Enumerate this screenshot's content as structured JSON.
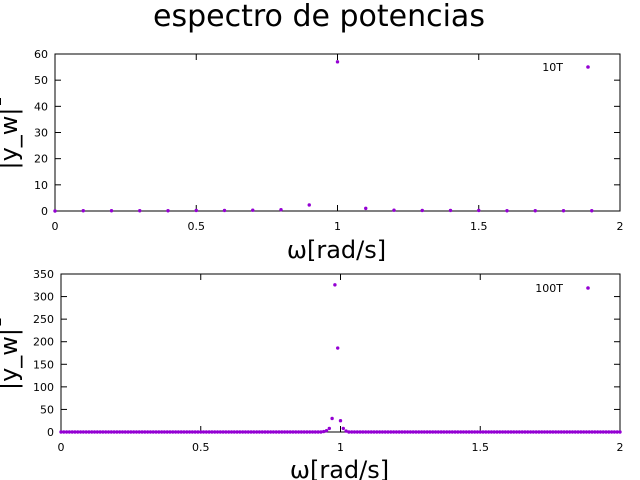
{
  "figure": {
    "title": "espectro de potencias"
  },
  "chart_data": [
    {
      "type": "scatter",
      "xlabel": "ω[rad/s]",
      "ylabel": "|y_w|¯",
      "xlim": [
        0,
        2
      ],
      "ylim": [
        0,
        60
      ],
      "xticks": [
        "0",
        "0.5",
        "1",
        "1.5",
        "2"
      ],
      "xtick_values": [
        0,
        0.5,
        1,
        1.5,
        2
      ],
      "yticks": [
        "0",
        "10",
        "20",
        "30",
        "40",
        "50",
        "60"
      ],
      "ytick_values": [
        0,
        10,
        20,
        30,
        40,
        50,
        60
      ],
      "grid": false,
      "legend_position": "top-right",
      "color": "#9400d3",
      "series": [
        {
          "name": "10T",
          "x": [
            0,
            0.1,
            0.2,
            0.3,
            0.4,
            0.5,
            0.6,
            0.7,
            0.8,
            0.9,
            1.0,
            1.1,
            1.2,
            1.3,
            1.4,
            1.5,
            1.6,
            1.7,
            1.8,
            1.9
          ],
          "y": [
            0,
            0.1,
            0.1,
            0.1,
            0.1,
            0.2,
            0.2,
            0.3,
            0.5,
            2.3,
            57,
            1.0,
            0.3,
            0.2,
            0.2,
            0.2,
            0.1,
            0.1,
            0.1,
            0.1
          ]
        }
      ]
    },
    {
      "type": "scatter",
      "xlabel": "ω[rad/s]",
      "ylabel": "|y_w|¯",
      "xlim": [
        0,
        2
      ],
      "ylim": [
        0,
        350
      ],
      "xticks": [
        "0",
        "0.5",
        "1",
        "1.5",
        "2"
      ],
      "xtick_values": [
        0,
        0.5,
        1,
        1.5,
        2
      ],
      "yticks": [
        "0",
        "50",
        "100",
        "150",
        "200",
        "250",
        "300",
        "350"
      ],
      "ytick_values": [
        0,
        50,
        100,
        150,
        200,
        250,
        300,
        350
      ],
      "grid": false,
      "legend_position": "top-right",
      "color": "#9400d3",
      "series": [
        {
          "name": "100T",
          "x": [
            0.94,
            0.95,
            0.96,
            0.97,
            0.98,
            0.99,
            1.0,
            1.01,
            1.02
          ],
          "y": [
            1,
            3,
            8,
            30,
            326,
            186,
            25,
            8,
            2
          ],
          "baseline_x_step": 0.01,
          "baseline_y": 0
        }
      ]
    }
  ]
}
